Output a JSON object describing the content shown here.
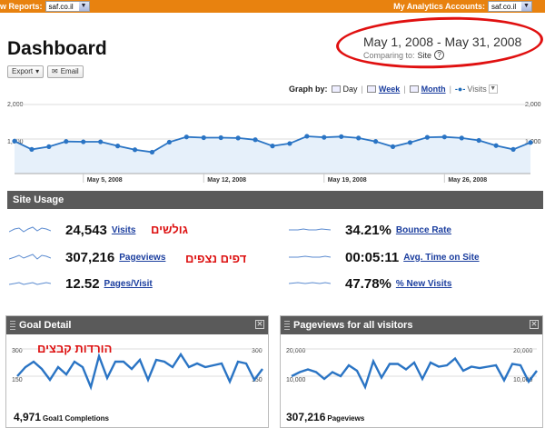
{
  "topbar": {
    "left_label": "w Reports:",
    "left_select": "saf.co.il",
    "right_label": "My Analytics Accounts:",
    "right_select": "saf.co.il"
  },
  "header": {
    "title": "Dashboard",
    "export_label": "Export",
    "email_label": "Email",
    "date_range": "May 1, 2008 - May 31, 2008",
    "comparing_prefix": "Comparing to:",
    "comparing_value": "Site"
  },
  "graphby": {
    "label": "Graph by:",
    "day": "Day",
    "week": "Week",
    "month": "Month",
    "metric": "Visits"
  },
  "main_chart": {
    "y_top": "2,000",
    "y_mid": "1,000",
    "x_labels": [
      "May 5, 2008",
      "May 12, 2008",
      "May 19, 2008",
      "May 26, 2008"
    ]
  },
  "site_usage": {
    "title": "Site Usage",
    "metrics": [
      {
        "value": "24,543",
        "label": "Visits",
        "hebrew": "גולשים"
      },
      {
        "value": "307,216",
        "label": "Pageviews",
        "hebrew": "דפים נצפים"
      },
      {
        "value": "12.52",
        "label": "Pages/Visit"
      },
      {
        "value": "34.21%",
        "label": "Bounce Rate"
      },
      {
        "value": "00:05:11",
        "label": "Avg. Time on Site"
      },
      {
        "value": "47.78%",
        "label": "% New Visits"
      }
    ]
  },
  "goal_panel": {
    "title": "Goal Detail",
    "y_top": "300",
    "y_mid": "150",
    "hebrew": "הורדות קבצים",
    "total": "4,971",
    "total_label": "Goal1 Completions"
  },
  "pageviews_panel": {
    "title": "Pageviews for all visitors",
    "y_top": "20,000",
    "y_mid": "10,000",
    "total": "307,216",
    "total_label": "Pageviews"
  },
  "chart_data": [
    {
      "type": "line",
      "title": "",
      "series": [
        {
          "name": "Visits",
          "values": [
            940,
            700,
            780,
            930,
            920,
            920,
            800,
            690,
            620,
            910,
            1060,
            1040,
            1040,
            1030,
            980,
            800,
            870,
            1080,
            1050,
            1070,
            1030,
            930,
            780,
            900,
            1050,
            1060,
            1030,
            960,
            810,
            700,
            900
          ]
        }
      ],
      "x": [
        "May 1",
        "May 2",
        "May 3",
        "May 4",
        "May 5",
        "May 6",
        "May 7",
        "May 8",
        "May 9",
        "May 10",
        "May 11",
        "May 12",
        "May 13",
        "May 14",
        "May 15",
        "May 16",
        "May 17",
        "May 18",
        "May 19",
        "May 20",
        "May 21",
        "May 22",
        "May 23",
        "May 24",
        "May 25",
        "May 26",
        "May 27",
        "May 28",
        "May 29",
        "May 30",
        "May 31"
      ],
      "ylim": [
        0,
        2000
      ]
    },
    {
      "type": "line",
      "title": "Goal Detail",
      "series": [
        {
          "name": "Goal1 Completions",
          "values": [
            150,
            200,
            230,
            190,
            130,
            200,
            160,
            230,
            200,
            90,
            260,
            140,
            230,
            230,
            190,
            240,
            130,
            240,
            230,
            200,
            270,
            200,
            220,
            200,
            210,
            220,
            120,
            230,
            220,
            130,
            190
          ]
        }
      ],
      "ylim": [
        0,
        300
      ]
    },
    {
      "type": "line",
      "title": "Pageviews for all visitors",
      "series": [
        {
          "name": "Pageviews",
          "values": [
            10000,
            11500,
            12500,
            11500,
            9000,
            11500,
            10000,
            14000,
            12000,
            6000,
            15500,
            9500,
            14500,
            14500,
            12500,
            15000,
            9000,
            15000,
            13500,
            14000,
            16500,
            12000,
            13500,
            13000,
            13500,
            14000,
            8500,
            14500,
            14000,
            8000,
            12000
          ]
        }
      ],
      "ylim": [
        0,
        20000
      ]
    }
  ]
}
